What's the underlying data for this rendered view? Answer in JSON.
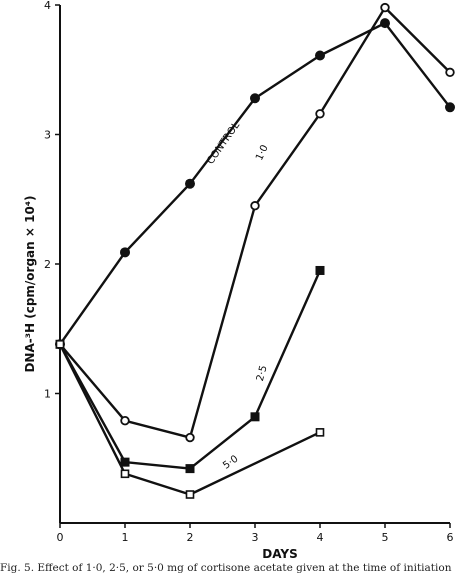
{
  "chart_data": {
    "type": "line",
    "xlabel": "DAYS",
    "ylabel": "DNA-³H (cpm/organ × 10⁴)",
    "xlim": [
      0,
      6
    ],
    "ylim": [
      0,
      4
    ],
    "x_ticks": [
      "0",
      "1",
      "2",
      "3",
      "4",
      "5",
      "6"
    ],
    "y_ticks": [
      "1",
      "2",
      "3",
      "4"
    ],
    "grid": false,
    "legend": "inline labels",
    "series": [
      {
        "name": "CONTROL",
        "marker": "filled-circle",
        "x": [
          0,
          1,
          2,
          3,
          4,
          5,
          6
        ],
        "y": [
          1.38,
          2.09,
          2.62,
          3.28,
          3.61,
          3.86,
          3.21
        ]
      },
      {
        "name": "1·0",
        "marker": "open-circle",
        "x": [
          0,
          1,
          2,
          3,
          4,
          5,
          6
        ],
        "y": [
          1.38,
          0.79,
          0.66,
          2.45,
          3.16,
          3.98,
          3.48
        ]
      },
      {
        "name": "2·5",
        "marker": "filled-square",
        "x": [
          0,
          1,
          2,
          3,
          4
        ],
        "y": [
          1.38,
          0.47,
          0.42,
          0.82,
          1.95
        ]
      },
      {
        "name": "5·0",
        "marker": "open-square",
        "x": [
          0,
          1,
          2,
          4
        ],
        "y": [
          1.38,
          0.38,
          0.22,
          0.7
        ]
      }
    ]
  },
  "caption": "Fig. 5. Effect of 1·0, 2·5, or 5·0 mg of cortisone acetate given at the time of initiation"
}
